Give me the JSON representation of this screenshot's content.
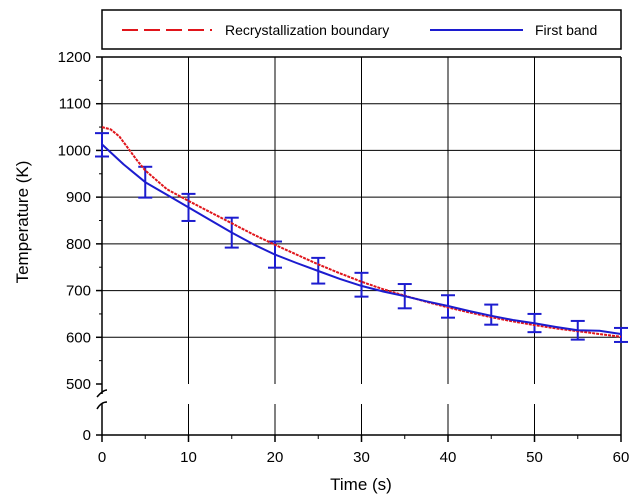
{
  "chart_data": {
    "type": "line",
    "xlabel": "Time (s)",
    "ylabel": "Temperature (K)",
    "xlim": [
      0,
      60
    ],
    "ylim": [
      500,
      1200
    ],
    "y_break": {
      "from": 0,
      "to": 500
    },
    "x_ticks": [
      "0",
      "10",
      "20",
      "30",
      "40",
      "50",
      "60"
    ],
    "y_ticks_upper": [
      "500",
      "600",
      "700",
      "800",
      "900",
      "1000",
      "1100",
      "1200"
    ],
    "y_ticks_lower": [
      "0"
    ],
    "grid": true,
    "legend_position": "top",
    "series": [
      {
        "name": "Recrystallization boundary",
        "color": "#e0151b",
        "style": "dashed",
        "x": [
          0,
          1,
          2,
          3,
          4,
          5,
          7.5,
          10,
          12.5,
          15,
          17.5,
          20,
          22.5,
          25,
          27.5,
          30,
          32.5,
          35,
          37.5,
          40,
          42.5,
          45,
          47.5,
          50,
          52.5,
          55,
          57.5,
          60
        ],
        "y": [
          1050,
          1045,
          1030,
          1005,
          980,
          957,
          917,
          892,
          868,
          844,
          820,
          798,
          777,
          756,
          737,
          719,
          703,
          689,
          676,
          664,
          653,
          643,
          634,
          626,
          619,
          613,
          607,
          601
        ]
      },
      {
        "name": "First band",
        "color": "#1c1ccf",
        "style": "solid",
        "x": [
          0,
          2.5,
          5,
          7.5,
          10,
          12.5,
          15,
          17.5,
          20,
          22.5,
          25,
          27.5,
          30,
          32.5,
          35,
          37.5,
          40,
          42.5,
          45,
          47.5,
          50,
          52.5,
          55,
          57.5,
          60
        ],
        "y": [
          1013,
          970,
          932,
          905,
          878,
          851,
          824,
          799,
          777,
          759,
          742,
          725,
          710,
          698,
          688,
          677,
          667,
          656,
          646,
          637,
          630,
          622,
          615,
          614,
          607
        ],
        "error_bars": {
          "x": [
            0,
            5,
            10,
            15,
            20,
            25,
            30,
            35,
            40,
            45,
            50,
            55,
            60
          ],
          "y": [
            1012,
            932,
            878,
            824,
            777,
            742,
            710,
            688,
            667,
            646,
            630,
            615,
            607
          ],
          "low": [
            987,
            899,
            849,
            792,
            749,
            715,
            687,
            662,
            642,
            627,
            611,
            595,
            590
          ],
          "high": [
            1037,
            965,
            907,
            856,
            805,
            770,
            738,
            714,
            690,
            670,
            650,
            635,
            620
          ]
        }
      }
    ]
  }
}
